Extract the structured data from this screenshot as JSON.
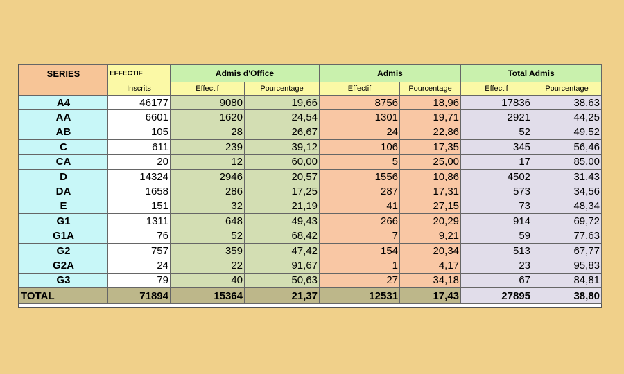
{
  "header": {
    "series": "SERIES",
    "effectif": "EFFECTIF",
    "admis_office": "Admis d'Office",
    "admis": "Admis",
    "total_admis": "Total Admis",
    "inscrits": "Inscrits",
    "effectif_sub": "Effectif",
    "pourcentage_sub": "Pourcentage"
  },
  "rows": [
    {
      "serie": "A4",
      "inscrits": "46177",
      "ao_eff": "9080",
      "ao_pct": "19,66",
      "ad_eff": "8756",
      "ad_pct": "18,96",
      "ta_eff": "17836",
      "ta_pct": "38,63"
    },
    {
      "serie": "AA",
      "inscrits": "6601",
      "ao_eff": "1620",
      "ao_pct": "24,54",
      "ad_eff": "1301",
      "ad_pct": "19,71",
      "ta_eff": "2921",
      "ta_pct": "44,25"
    },
    {
      "serie": "AB",
      "inscrits": "105",
      "ao_eff": "28",
      "ao_pct": "26,67",
      "ad_eff": "24",
      "ad_pct": "22,86",
      "ta_eff": "52",
      "ta_pct": "49,52"
    },
    {
      "serie": "C",
      "inscrits": "611",
      "ao_eff": "239",
      "ao_pct": "39,12",
      "ad_eff": "106",
      "ad_pct": "17,35",
      "ta_eff": "345",
      "ta_pct": "56,46"
    },
    {
      "serie": "CA",
      "inscrits": "20",
      "ao_eff": "12",
      "ao_pct": "60,00",
      "ad_eff": "5",
      "ad_pct": "25,00",
      "ta_eff": "17",
      "ta_pct": "85,00"
    },
    {
      "serie": "D",
      "inscrits": "14324",
      "ao_eff": "2946",
      "ao_pct": "20,57",
      "ad_eff": "1556",
      "ad_pct": "10,86",
      "ta_eff": "4502",
      "ta_pct": "31,43"
    },
    {
      "serie": "DA",
      "inscrits": "1658",
      "ao_eff": "286",
      "ao_pct": "17,25",
      "ad_eff": "287",
      "ad_pct": "17,31",
      "ta_eff": "573",
      "ta_pct": "34,56"
    },
    {
      "serie": "E",
      "inscrits": "151",
      "ao_eff": "32",
      "ao_pct": "21,19",
      "ad_eff": "41",
      "ad_pct": "27,15",
      "ta_eff": "73",
      "ta_pct": "48,34"
    },
    {
      "serie": "G1",
      "inscrits": "1311",
      "ao_eff": "648",
      "ao_pct": "49,43",
      "ad_eff": "266",
      "ad_pct": "20,29",
      "ta_eff": "914",
      "ta_pct": "69,72"
    },
    {
      "serie": "G1A",
      "inscrits": "76",
      "ao_eff": "52",
      "ao_pct": "68,42",
      "ad_eff": "7",
      "ad_pct": "9,21",
      "ta_eff": "59",
      "ta_pct": "77,63"
    },
    {
      "serie": "G2",
      "inscrits": "757",
      "ao_eff": "359",
      "ao_pct": "47,42",
      "ad_eff": "154",
      "ad_pct": "20,34",
      "ta_eff": "513",
      "ta_pct": "67,77"
    },
    {
      "serie": "G2A",
      "inscrits": "24",
      "ao_eff": "22",
      "ao_pct": "91,67",
      "ad_eff": "1",
      "ad_pct": "4,17",
      "ta_eff": "23",
      "ta_pct": "95,83"
    },
    {
      "serie": "G3",
      "inscrits": "79",
      "ao_eff": "40",
      "ao_pct": "50,63",
      "ad_eff": "27",
      "ad_pct": "34,18",
      "ta_eff": "67",
      "ta_pct": "84,81"
    }
  ],
  "total": {
    "serie": "TOTAL",
    "inscrits": "71894",
    "ao_eff": "15364",
    "ao_pct": "21,37",
    "ad_eff": "12531",
    "ad_pct": "17,43",
    "ta_eff": "27895",
    "ta_pct": "38,80"
  },
  "colors": {
    "background": "#f0d08a",
    "series_header": "#f7c597",
    "series_cells": "#c8f7f8",
    "admis_office_cells": "#d3deb3",
    "admis_cells": "#f9c7a4",
    "total_admis_cells": "#e1ddea",
    "total_row": "#bdb78a"
  }
}
